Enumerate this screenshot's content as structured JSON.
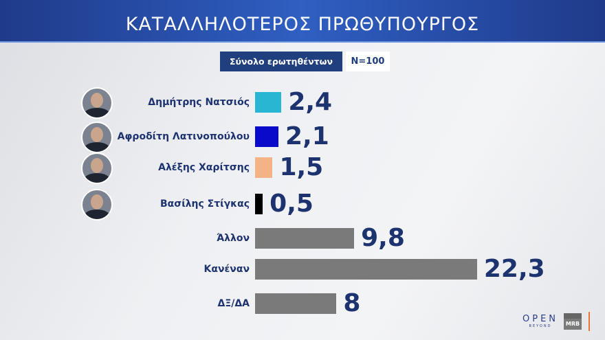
{
  "header": {
    "title": "ΚΑΤΑΛΛΗΛΟΤΕΡΟΣ ΠΡΩΘΥΠΟΥΡΓΟΣ"
  },
  "sample": {
    "label": "Σύνολο ερωτηθέντων",
    "n": "N=100"
  },
  "chart_data": {
    "type": "bar",
    "orientation": "horizontal",
    "title": "ΚΑΤΑΛΛΗΛΟΤΕΡΟΣ ΠΡΩΘΥΠΟΥΡΓΟΣ",
    "categories": [
      "Δημήτρης Νατσιός",
      "Αφροδίτη Λατινοπούλου",
      "Αλέξης Χαρίτσης",
      "Βασίλης Στίγκας",
      "Άλλον",
      "Κανέναν",
      "ΔΞ/ΔΑ"
    ],
    "values": [
      2.4,
      2.1,
      1.5,
      0.5,
      9.8,
      22.3,
      8
    ],
    "labels": [
      "2,4",
      "2,1",
      "1,5",
      "0,5",
      "9,8",
      "22,3",
      "8"
    ],
    "colors": [
      "#29b6d2",
      "#0a0acb",
      "#f4b387",
      "#000000",
      "#7a7a7a",
      "#7a7a7a",
      "#7a7a7a"
    ],
    "has_photo": [
      true,
      true,
      true,
      true,
      false,
      false,
      false
    ],
    "grid": false
  },
  "logos": {
    "open": "OPEN",
    "open_sub": "BEYOND",
    "mrb": "MRB"
  }
}
